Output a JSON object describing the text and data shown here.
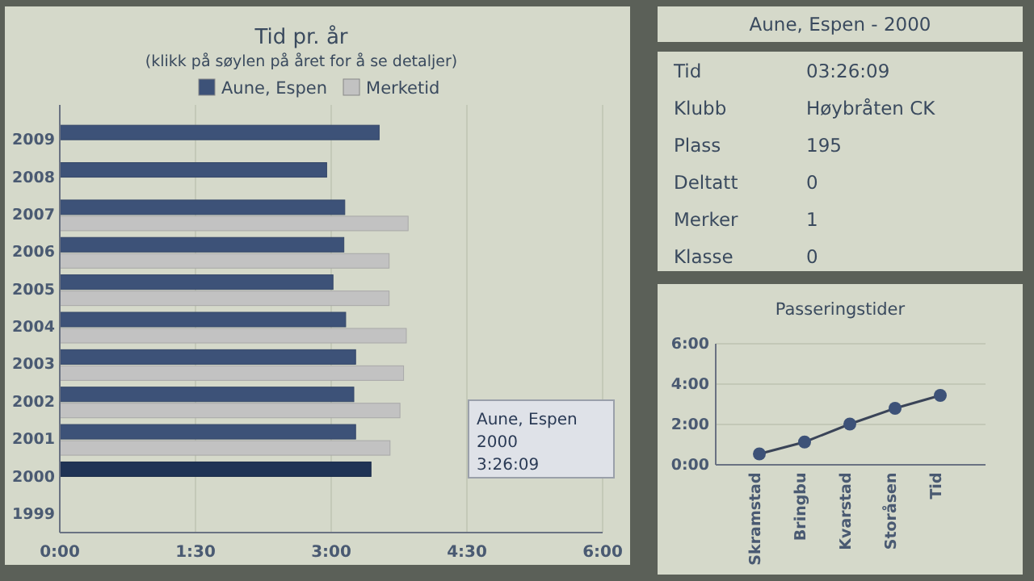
{
  "chart_data": [
    {
      "type": "bar",
      "orientation": "horizontal",
      "title": "Tid pr. år",
      "subtitle": "(klikk på søylen på året for å se detaljer)",
      "categories": [
        "2009",
        "2008",
        "2007",
        "2006",
        "2005",
        "2004",
        "2003",
        "2002",
        "2001",
        "2000",
        "1999"
      ],
      "series": [
        {
          "name": "Aune, Espen",
          "color": "#3d5278",
          "colors": [
            "#3d5278",
            "#3d5278",
            "#3d5278",
            "#3d5278",
            "#3d5278",
            "#3d5278",
            "#3d5278",
            "#3d5278",
            "#3d5278",
            "#1f3355",
            null
          ],
          "values": [
            3.53,
            2.95,
            3.15,
            3.14,
            3.02,
            3.16,
            3.27,
            3.25,
            3.27,
            3.44,
            null
          ]
        },
        {
          "name": "Merketid",
          "color": "#c2c2c2",
          "values": [
            null,
            null,
            3.85,
            3.64,
            3.64,
            3.83,
            3.8,
            3.76,
            3.65,
            null,
            null
          ]
        }
      ],
      "xlim": [
        0,
        6
      ],
      "xticks": [
        {
          "value": 0,
          "label": "0:00"
        },
        {
          "value": 1.5,
          "label": "1:30"
        },
        {
          "value": 3,
          "label": "3:00"
        },
        {
          "value": 4.5,
          "label": "4:30"
        },
        {
          "value": 6,
          "label": "6:00"
        }
      ],
      "grid": "x",
      "legend": "top",
      "annotations": [
        "Aune, Espen\n2000\n3:26:09"
      ]
    },
    {
      "type": "other",
      "title": "Aune, Espen - 2000",
      "annotations": [
        "Tid",
        "03:26:09",
        "Klubb",
        "Høybråten CK",
        "Plass",
        "195",
        "Deltatt",
        "0",
        "Merker",
        "1",
        "Klasse",
        "0"
      ]
    },
    {
      "type": "line",
      "title": "Passeringstider",
      "categories": [
        "Skramstad",
        "Bringbu",
        "Kvarstad",
        "Storåsen",
        "Tid"
      ],
      "series": [
        {
          "color": "#3d5278",
          "values": [
            0.54,
            1.13,
            2.02,
            2.8,
            3.44
          ]
        }
      ],
      "ylim": [
        0,
        6
      ],
      "yticks": [
        {
          "value": 0,
          "label": "0:00"
        },
        {
          "value": 2,
          "label": "2:00"
        },
        {
          "value": 4,
          "label": "4:00"
        },
        {
          "value": 6,
          "label": "6:00"
        }
      ],
      "grid": "y",
      "marker": "circle"
    }
  ]
}
